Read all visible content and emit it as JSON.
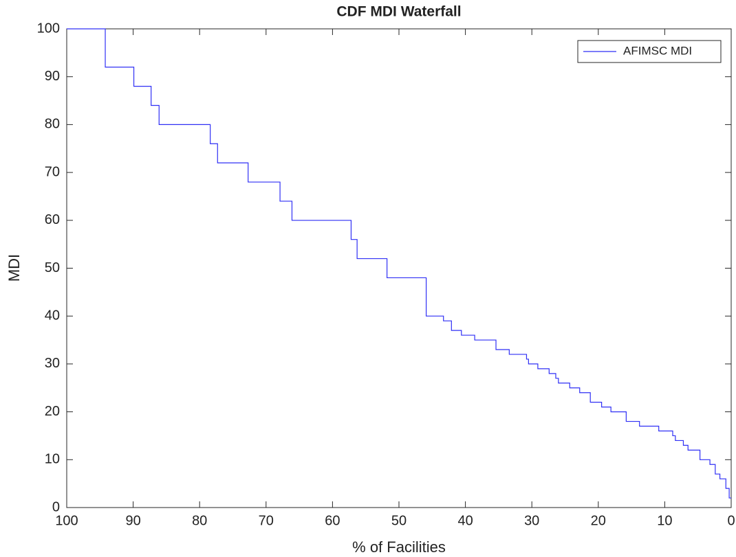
{
  "chart_data": {
    "type": "line",
    "title": "CDF MDI Waterfall",
    "x_label": "% of Facilities",
    "y_label": "MDI",
    "xlim": [
      100,
      0
    ],
    "ylim": [
      0,
      100
    ],
    "xticks": [
      100,
      90,
      80,
      70,
      60,
      50,
      40,
      30,
      20,
      10,
      0
    ],
    "yticks": [
      0,
      10,
      20,
      30,
      40,
      50,
      60,
      70,
      80,
      90,
      100
    ],
    "grid": false,
    "legend": "upper right",
    "series": [
      {
        "name": "AFIMSC MDI",
        "color": "#2f2ff5",
        "x": [
          100,
          94.2,
          94.2,
          89.9,
          89.9,
          87.3,
          87.3,
          86.1,
          86.1,
          78.4,
          78.4,
          77.3,
          77.3,
          72.7,
          72.7,
          67.9,
          67.9,
          66.1,
          66.1,
          57.2,
          57.2,
          56.3,
          56.3,
          51.8,
          51.8,
          45.9,
          45.9,
          43.3,
          43.3,
          42.1,
          42.1,
          40.6,
          40.6,
          38.6,
          38.6,
          35.4,
          35.4,
          33.4,
          33.4,
          30.8,
          30.8,
          30.5,
          30.5,
          29.1,
          29.1,
          27.4,
          27.4,
          26.4,
          26.4,
          26.0,
          26.0,
          24.3,
          24.3,
          22.8,
          22.8,
          21.2,
          21.2,
          19.5,
          19.5,
          18.1,
          18.1,
          15.8,
          15.8,
          13.8,
          13.8,
          10.9,
          10.9,
          8.8,
          8.8,
          8.4,
          8.4,
          7.2,
          7.2,
          6.5,
          6.5,
          4.7,
          4.7,
          3.2,
          3.2,
          2.4,
          2.4,
          1.7,
          1.7,
          0.8,
          0.8,
          0.3,
          0.3,
          0
        ],
        "values": [
          100,
          100,
          92,
          92,
          88,
          88,
          84,
          84,
          80,
          80,
          76,
          76,
          72,
          72,
          68,
          68,
          64,
          64,
          60,
          60,
          56,
          56,
          52,
          52,
          48,
          48,
          40,
          40,
          39,
          39,
          37,
          37,
          36,
          36,
          35,
          35,
          33,
          33,
          32,
          32,
          31,
          31,
          30,
          30,
          29,
          29,
          28,
          28,
          27,
          27,
          26,
          26,
          25,
          25,
          24,
          24,
          22,
          22,
          21,
          21,
          20,
          20,
          18,
          18,
          17,
          17,
          16,
          16,
          15,
          15,
          14,
          14,
          13,
          13,
          12,
          12,
          10,
          10,
          9,
          9,
          7,
          7,
          6,
          6,
          4,
          4,
          2,
          2
        ]
      }
    ]
  }
}
